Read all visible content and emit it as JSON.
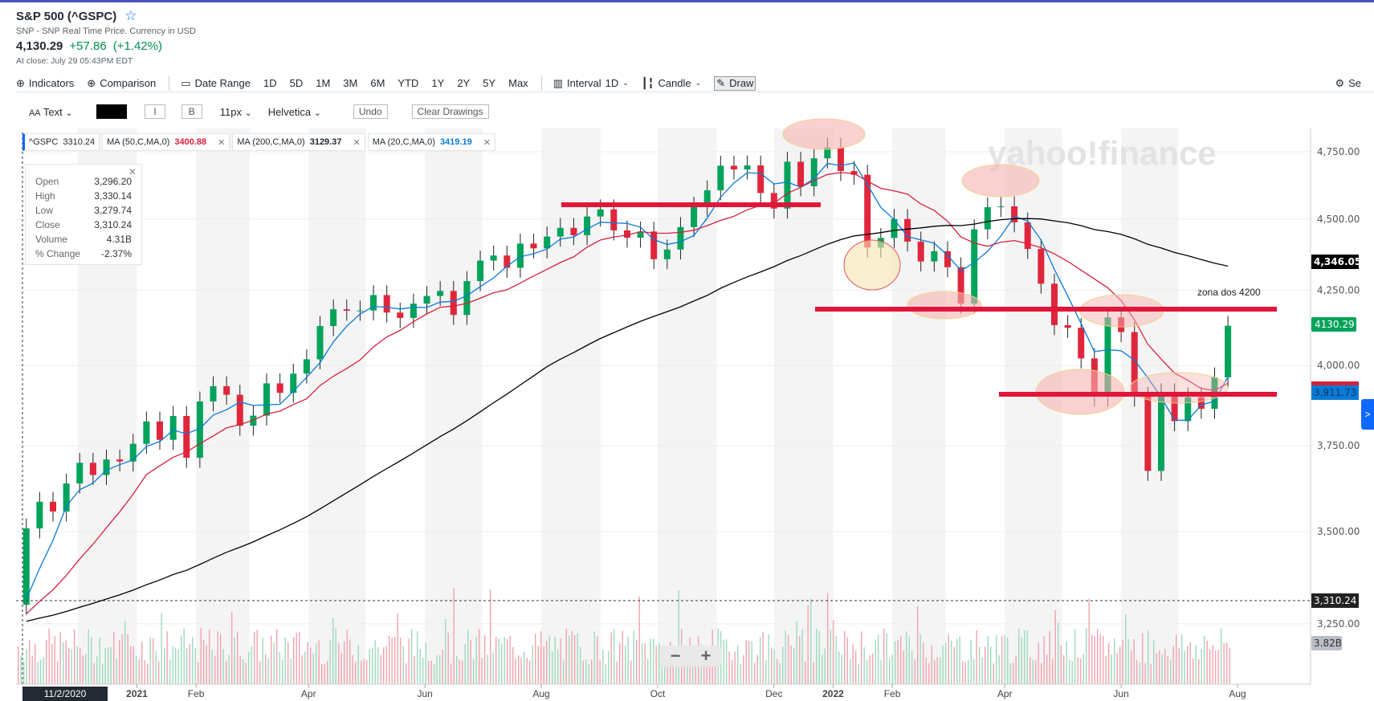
{
  "header": {
    "title": "S&P 500 (^GSPC)",
    "subtitle": "SNP - SNP Real Time Price. Currency in USD",
    "price": "4,130.29",
    "change": "+57.86",
    "change_pct": "(+1.42%)",
    "close_time": "At close: July 29 05:43PM EDT",
    "accent": "#0f69ff"
  },
  "toolbar": {
    "indicators": "Indicators",
    "comparison": "Comparison",
    "date_range": "Date Range",
    "ranges": [
      "1D",
      "5D",
      "1M",
      "3M",
      "6M",
      "YTD",
      "1Y",
      "2Y",
      "5Y",
      "Max"
    ],
    "interval_label": "Interval",
    "interval": "1D",
    "chart_type": "Candle",
    "draw": "Draw",
    "settings": "Se"
  },
  "drawbar": {
    "text": "Text",
    "italic": "I",
    "bold": "B",
    "size": "11px",
    "font": "Helvetica",
    "undo": "Undo",
    "clear": "Clear Drawings",
    "color": "#000000"
  },
  "tags": [
    {
      "label": "^GSPC",
      "value": "3310.24",
      "color": "#232a31"
    },
    {
      "label": "MA (50,C,MA,0)",
      "value": "3400.88",
      "color": "#d4213d"
    },
    {
      "label": "MA (200,C,MA,0)",
      "value": "3129.37",
      "color": "#000000"
    },
    {
      "label": "MA (20,C,MA,0)",
      "value": "3419.19",
      "color": "#0a7ad6"
    }
  ],
  "ohlc": {
    "rows": [
      [
        "Open",
        "3,296.20"
      ],
      [
        "High",
        "3,330.14"
      ],
      [
        "Low",
        "3,279.74"
      ],
      [
        "Close",
        "3,310.24"
      ],
      [
        "Volume",
        "4.31B"
      ],
      [
        "% Change",
        "-2.37%"
      ]
    ]
  },
  "watermark": "yahoo!finance",
  "annotation": "zona dos 4200",
  "badges": {
    "ma200": "4,346.05",
    "last": "4130.29",
    "ma20": "3,911.73",
    "crosshair": "3,310.24",
    "volume": "3.82B"
  },
  "zoom": {
    "minus": "−",
    "plus": "+"
  },
  "nav_arrow": ">",
  "chart_data": {
    "type": "candlestick",
    "scale": "log",
    "y_ticks": [
      "4,750.00",
      "4,500.00",
      "4,250.00",
      "4,000.00",
      "3,750.00",
      "3,500.00",
      "3,250.00"
    ],
    "y_tick_values": [
      4750,
      4500,
      4250,
      4000,
      3750,
      3500,
      3250
    ],
    "x_ticks": [
      "2021",
      "Feb",
      "Apr",
      "Jun",
      "Aug",
      "Oct",
      "Dec",
      "2022",
      "Feb",
      "Apr",
      "Jun",
      "Aug"
    ],
    "x_tick_dates": [
      "2021-01-01",
      "2021-02-01",
      "2021-04-01",
      "2021-06-01",
      "2021-08-01",
      "2021-10-01",
      "2021-12-01",
      "2022-01-01",
      "2022-02-01",
      "2022-04-01",
      "2022-06-01",
      "2022-08-01"
    ],
    "crosshair_date_label": "11/2/2020",
    "start": "2020-11-02",
    "series_closes_weekly": [
      3509,
      3585,
      3557,
      3638,
      3699,
      3663,
      3709,
      3703,
      3756,
      3824,
      3768,
      3841,
      3714,
      3886,
      3934,
      3907,
      3811,
      3842,
      3943,
      3913,
      3974,
      4020,
      4129,
      4185,
      4180,
      4181,
      4233,
      4174,
      4156,
      4204,
      4230,
      4247,
      4166,
      4281,
      4352,
      4370,
      4327,
      4412,
      4395,
      4437,
      4468,
      4442,
      4509,
      4535,
      4459,
      4433,
      4455,
      4357,
      4391,
      4471,
      4545,
      4605,
      4697,
      4683,
      4698,
      4595,
      4538,
      4712,
      4620,
      4725,
      4766,
      4677,
      4663,
      4398,
      4432,
      4500,
      4419,
      4349,
      4385,
      4329,
      4204,
      4463,
      4543,
      4546,
      4488,
      4393,
      4272,
      4132,
      4123,
      4023,
      3901,
      4158,
      4109,
      3901,
      3675,
      3912,
      3825,
      3899,
      3863,
      3962,
      4130
    ],
    "moving_averages": [
      {
        "name": "MA (20,C,MA,0)",
        "color": "#0a7ad6"
      },
      {
        "name": "MA (50,C,MA,0)",
        "color": "#d4213d"
      },
      {
        "name": "MA (200,C,MA,0)",
        "color": "#000000"
      }
    ],
    "drawn_levels": [
      4550,
      4200,
      3900
    ],
    "colors": {
      "up": "#00a35a",
      "down": "#e0263b",
      "drawing": "#e0163a"
    }
  }
}
